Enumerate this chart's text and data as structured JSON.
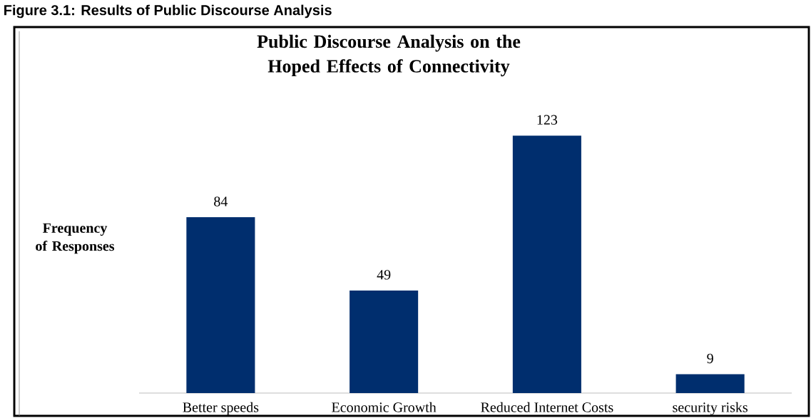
{
  "chart_data": {
    "type": "bar",
    "title": "Public Discourse Analysis on the Hoped Effects of Connectivity",
    "ylabel": "Frequency of Responses",
    "annotations": [
      "Figure 3.1: Results of Public Discourse Analysis"
    ],
    "categories": [
      "Better speeds",
      "Economic Growth",
      "Reduced Internet Costs",
      "security risks"
    ],
    "values": [
      84,
      49,
      123,
      9
    ],
    "color": "#002e6e",
    "data_labels": true
  }
}
